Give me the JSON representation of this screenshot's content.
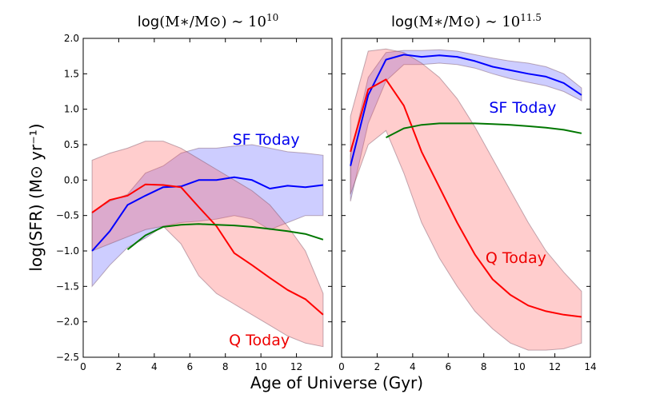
{
  "chart_data": [
    {
      "type": "line",
      "title_prefix": "log",
      "title_math": "(M∗/M⊙) ∼ 10",
      "title_exp": "10",
      "xlabel": "Age of Universe (Gyr)",
      "ylabel": "log(SFR) (M⊙ yr⁻¹)",
      "xlim": [
        0,
        14
      ],
      "ylim": [
        -2.5,
        2.0
      ],
      "xticks": [
        "0",
        "2",
        "4",
        "6",
        "8",
        "10",
        "12"
      ],
      "yticks": [
        "−2.5",
        "−2.0",
        "−1.5",
        "−1.0",
        "−0.5",
        "0.0",
        "0.5",
        "1.0",
        "1.5",
        "2.0"
      ],
      "annotations": [
        {
          "text": "SF Today",
          "x": 8.4,
          "y": 0.5,
          "color": "#0000ee"
        },
        {
          "text": "Q Today",
          "x": 8.2,
          "y": -2.33,
          "color": "#ee0000"
        }
      ],
      "series": [
        {
          "name": "SF Today",
          "color": "#0000ff",
          "x": [
            0.5,
            1.5,
            2.5,
            3.5,
            4.5,
            5.5,
            6.5,
            7.5,
            8.5,
            9.5,
            10.5,
            11.5,
            12.5,
            13.5
          ],
          "y": [
            -1.0,
            -0.72,
            -0.35,
            -0.22,
            -0.1,
            -0.09,
            0.0,
            0.0,
            0.04,
            0.0,
            -0.12,
            -0.08,
            -0.1,
            -0.07
          ],
          "band_upper": [
            -0.45,
            -0.3,
            -0.2,
            0.1,
            0.2,
            0.38,
            0.45,
            0.45,
            0.48,
            0.5,
            0.45,
            0.4,
            0.38,
            0.35
          ],
          "band_lower": [
            -1.5,
            -1.2,
            -0.95,
            -0.82,
            -0.65,
            -0.6,
            -0.58,
            -0.55,
            -0.5,
            -0.55,
            -0.7,
            -0.6,
            -0.5,
            -0.5
          ]
        },
        {
          "name": "Q Today",
          "color": "#ff0000",
          "x": [
            0.5,
            1.5,
            2.5,
            3.5,
            4.5,
            5.5,
            6.5,
            7.5,
            8.5,
            9.5,
            10.5,
            11.5,
            12.5,
            13.5
          ],
          "y": [
            -0.46,
            -0.28,
            -0.22,
            -0.06,
            -0.07,
            -0.1,
            -0.38,
            -0.65,
            -1.03,
            -1.2,
            -1.38,
            -1.55,
            -1.68,
            -1.9
          ],
          "band_upper": [
            0.28,
            0.38,
            0.45,
            0.55,
            0.55,
            0.45,
            0.3,
            0.15,
            0.0,
            -0.15,
            -0.35,
            -0.65,
            -1.0,
            -1.6
          ],
          "band_lower": [
            -1.0,
            -0.9,
            -0.8,
            -0.7,
            -0.65,
            -0.9,
            -1.35,
            -1.6,
            -1.75,
            -1.9,
            -2.05,
            -2.2,
            -2.3,
            -2.35
          ]
        },
        {
          "name": "Green",
          "color": "#007700",
          "x": [
            2.5,
            3.5,
            4.5,
            5.5,
            6.5,
            7.5,
            8.5,
            9.5,
            10.5,
            11.5,
            12.5,
            13.5
          ],
          "y": [
            -0.98,
            -0.78,
            -0.66,
            -0.63,
            -0.62,
            -0.63,
            -0.64,
            -0.66,
            -0.69,
            -0.72,
            -0.76,
            -0.84
          ]
        }
      ]
    },
    {
      "type": "line",
      "title_prefix": "log",
      "title_math": "(M∗/M⊙) ∼ 10",
      "title_exp": "11.5",
      "xlabel": "Age of Universe (Gyr)",
      "ylabel": "",
      "xlim": [
        0,
        14
      ],
      "ylim": [
        -2.5,
        2.0
      ],
      "xticks": [
        "0",
        "2",
        "4",
        "6",
        "8",
        "10",
        "12",
        "14"
      ],
      "yticks": [],
      "annotations": [
        {
          "text": "SF Today",
          "x": 8.3,
          "y": 0.95,
          "color": "#0000ee"
        },
        {
          "text": "Q Today",
          "x": 8.1,
          "y": -1.17,
          "color": "#ee0000"
        }
      ],
      "series": [
        {
          "name": "SF Today",
          "color": "#0000ff",
          "x": [
            0.5,
            1.5,
            2.5,
            3.5,
            4.5,
            5.5,
            6.5,
            7.5,
            8.5,
            9.5,
            10.5,
            11.5,
            12.5,
            13.5
          ],
          "y": [
            0.2,
            1.2,
            1.7,
            1.77,
            1.74,
            1.76,
            1.74,
            1.68,
            1.6,
            1.55,
            1.5,
            1.46,
            1.37,
            1.2
          ],
          "band_upper": [
            0.35,
            1.45,
            1.8,
            1.83,
            1.83,
            1.84,
            1.82,
            1.77,
            1.72,
            1.68,
            1.65,
            1.6,
            1.5,
            1.3
          ],
          "band_lower": [
            -0.3,
            0.8,
            1.4,
            1.63,
            1.63,
            1.65,
            1.63,
            1.58,
            1.5,
            1.43,
            1.38,
            1.33,
            1.25,
            1.12
          ]
        },
        {
          "name": "Q Today",
          "color": "#ff0000",
          "x": [
            0.5,
            1.5,
            2.5,
            3.5,
            4.5,
            5.5,
            6.5,
            7.5,
            8.5,
            9.5,
            10.5,
            11.5,
            12.5,
            13.5
          ],
          "y": [
            0.4,
            1.28,
            1.42,
            1.05,
            0.4,
            -0.1,
            -0.6,
            -1.05,
            -1.4,
            -1.62,
            -1.77,
            -1.85,
            -1.9,
            -1.93
          ],
          "band_upper": [
            0.9,
            1.82,
            1.85,
            1.8,
            1.65,
            1.45,
            1.15,
            0.75,
            0.3,
            -0.15,
            -0.6,
            -1.0,
            -1.3,
            -1.57
          ],
          "band_lower": [
            -0.2,
            0.5,
            0.7,
            0.1,
            -0.6,
            -1.1,
            -1.5,
            -1.85,
            -2.1,
            -2.3,
            -2.4,
            -2.4,
            -2.38,
            -2.3
          ]
        },
        {
          "name": "Green",
          "color": "#007700",
          "x": [
            2.5,
            3.5,
            4.5,
            5.5,
            6.5,
            7.5,
            8.5,
            9.5,
            10.5,
            11.5,
            12.5,
            13.5
          ],
          "y": [
            0.6,
            0.73,
            0.78,
            0.8,
            0.8,
            0.8,
            0.79,
            0.78,
            0.76,
            0.74,
            0.71,
            0.66
          ]
        }
      ]
    }
  ]
}
